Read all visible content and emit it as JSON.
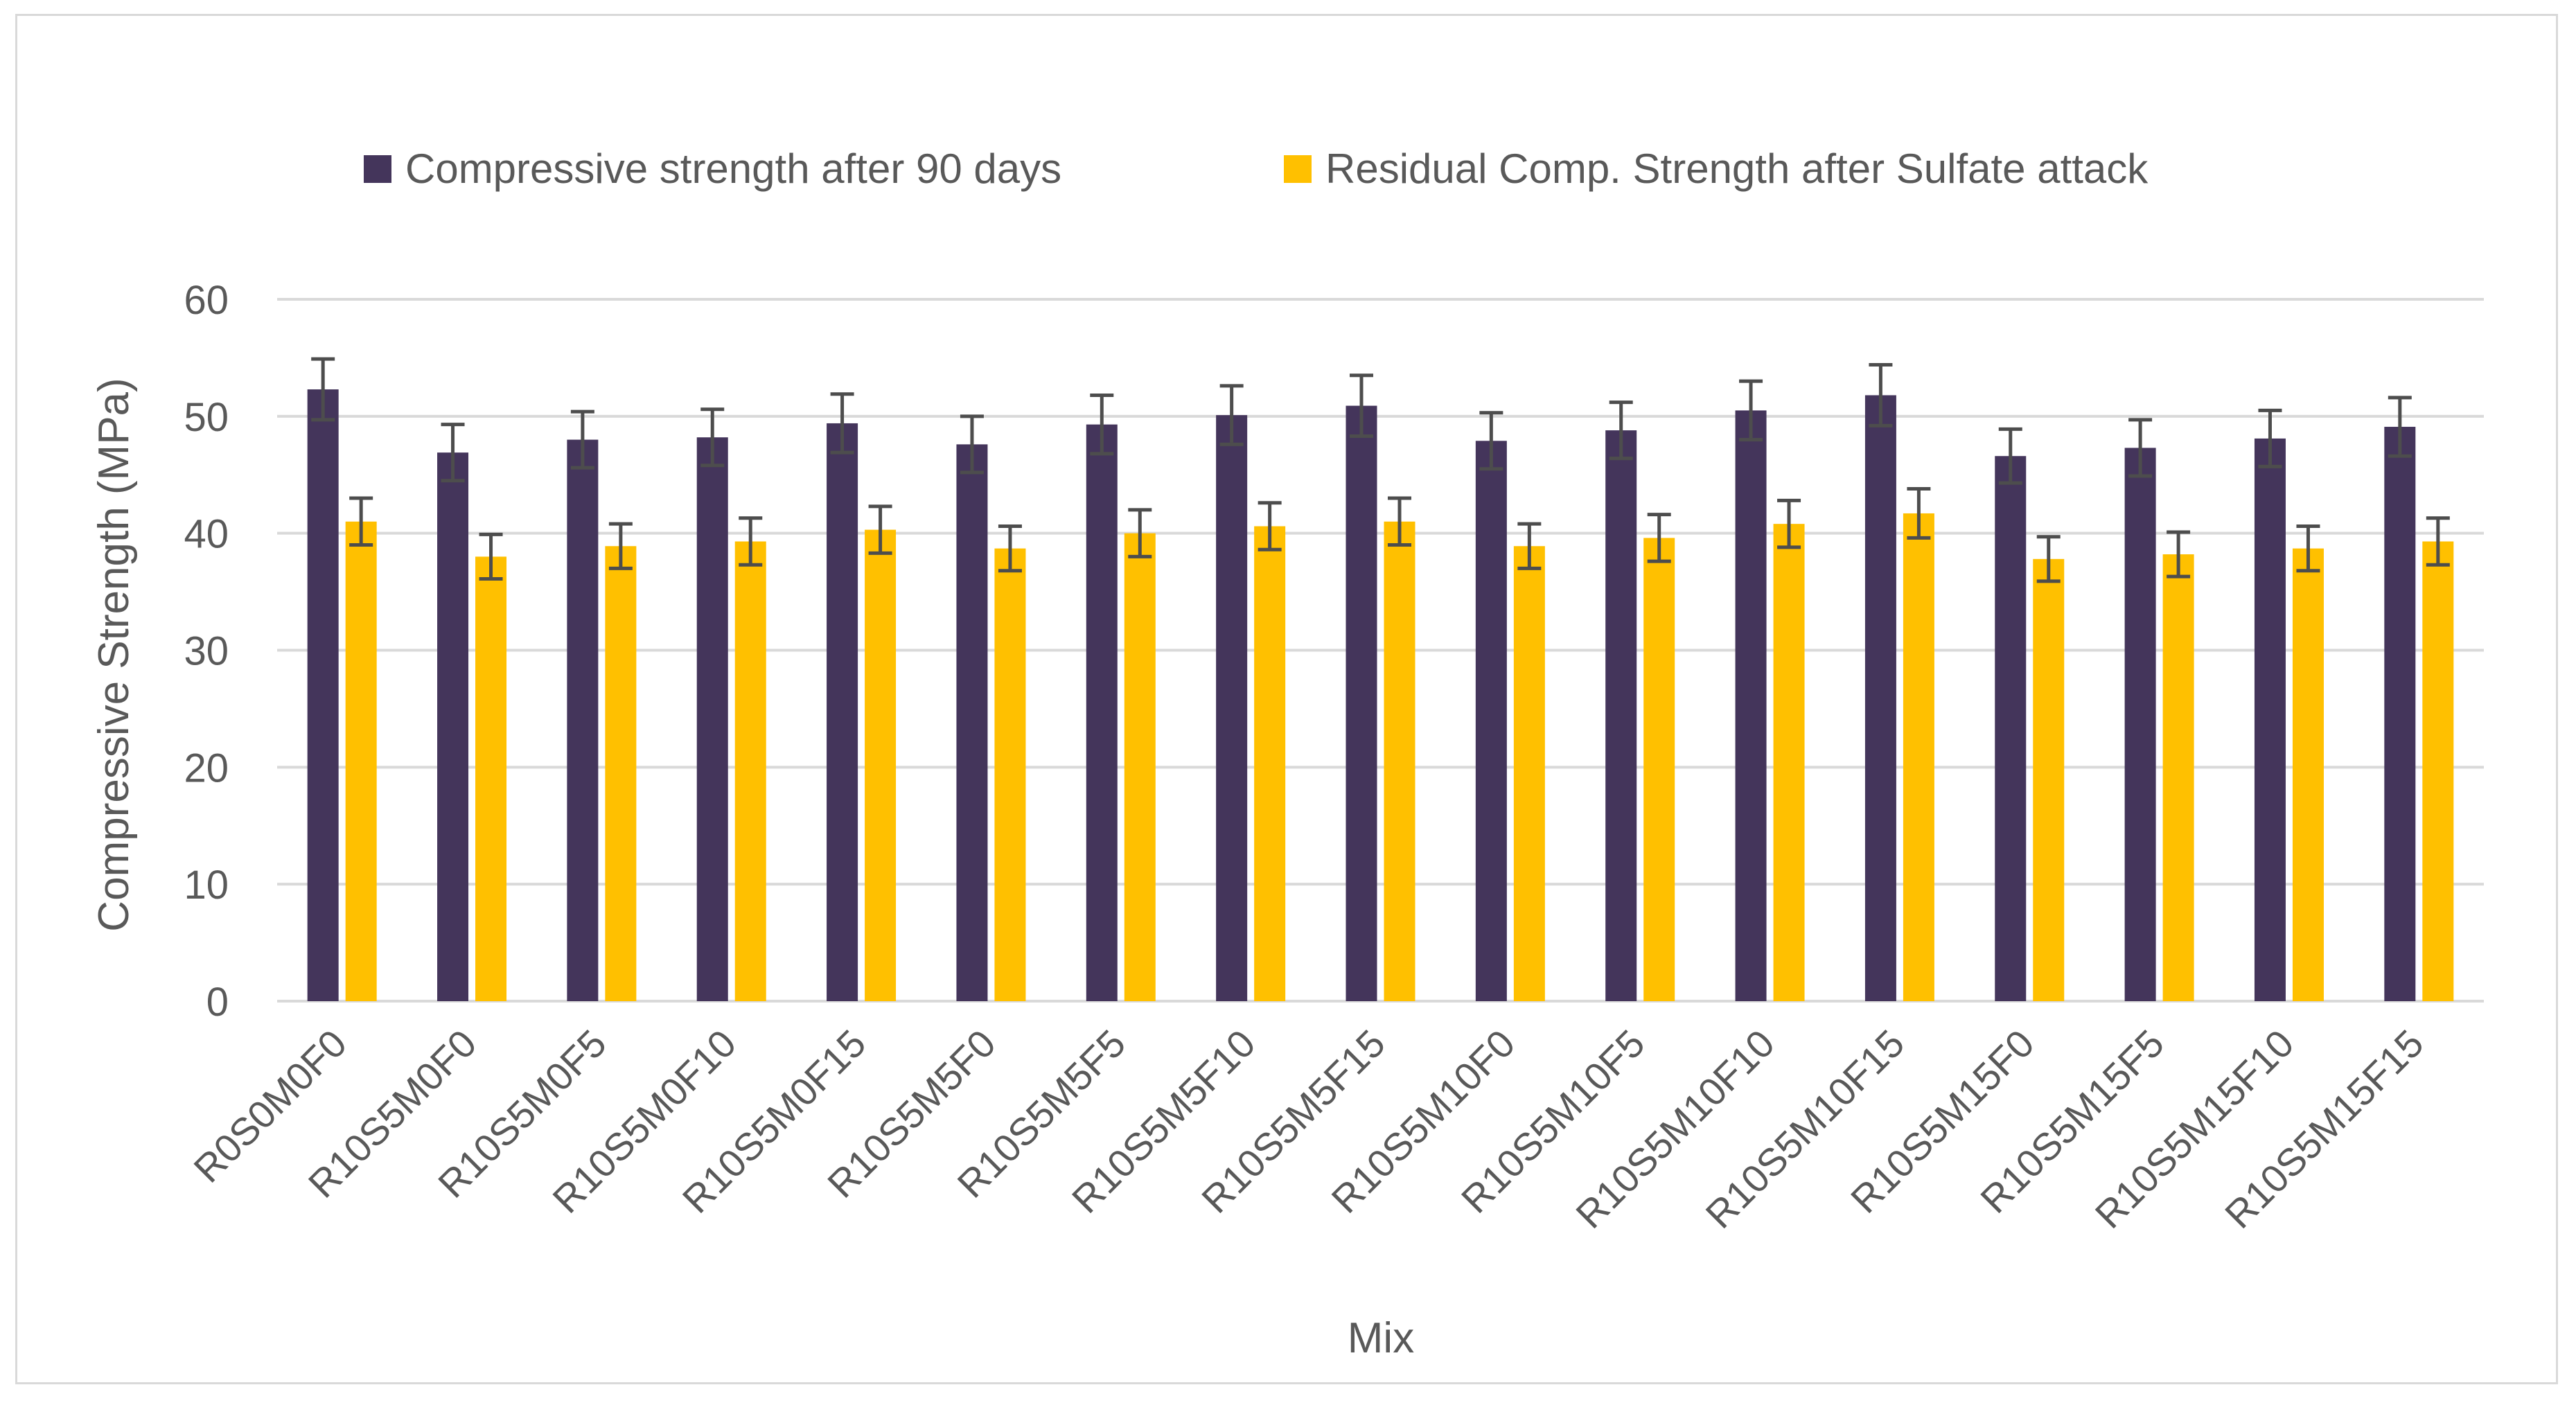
{
  "chart_data": {
    "type": "bar",
    "title": "",
    "xlabel": "Mix",
    "ylabel": "Compressive Strength (MPa)",
    "ylim": [
      0,
      60
    ],
    "yticks": [
      0,
      10,
      20,
      30,
      40,
      50,
      60
    ],
    "grid": true,
    "legend_position": "top",
    "categories": [
      "R0S0M0F0",
      "R10S5M0F0",
      "R10S5M0F5",
      "R10S5M0F10",
      "R10S5M0F15",
      "R10S5M5F0",
      "R10S5M5F5",
      "R10S5M5F10",
      "R10S5M5F15",
      "R10S5M10F0",
      "R10S5M10F5",
      "R10S5M10F10",
      "R10S5M10F15",
      "R10S5M15F0",
      "R10S5M15F5",
      "R10S5M15F10",
      "R10S5M15F15"
    ],
    "series": [
      {
        "name": "Compressive strength after 90 days",
        "color": "#44355b",
        "values": [
          52.3,
          46.9,
          48.0,
          48.2,
          49.4,
          47.6,
          49.3,
          50.1,
          50.9,
          47.9,
          48.8,
          50.5,
          51.8,
          46.6,
          47.3,
          48.1,
          49.1
        ],
        "errors": [
          2.6,
          2.4,
          2.4,
          2.4,
          2.5,
          2.4,
          2.5,
          2.5,
          2.6,
          2.4,
          2.4,
          2.5,
          2.6,
          2.3,
          2.4,
          2.4,
          2.5
        ]
      },
      {
        "name": "Residual Comp. Strength after Sulfate attack",
        "color": "#ffc000",
        "values": [
          41.0,
          38.0,
          38.9,
          39.3,
          40.3,
          38.7,
          40.0,
          40.6,
          41.0,
          38.9,
          39.6,
          40.8,
          41.7,
          37.8,
          38.2,
          38.7,
          39.3
        ],
        "errors": [
          2.0,
          1.9,
          1.9,
          2.0,
          2.0,
          1.9,
          2.0,
          2.0,
          2.0,
          1.9,
          2.0,
          2.0,
          2.1,
          1.9,
          1.9,
          1.9,
          2.0
        ]
      }
    ]
  },
  "style": {
    "grid_color": "#d9d9d9",
    "error_bar_color": "#4d4d4d",
    "text_color": "#595959"
  }
}
